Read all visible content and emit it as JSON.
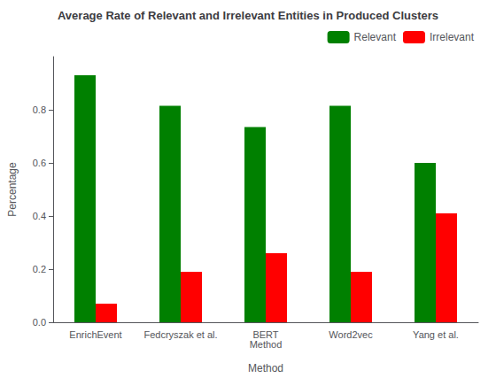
{
  "chart_data": {
    "type": "bar",
    "title": "Average Rate of Relevant and Irrelevant Entities in Produced Clusters",
    "xlabel": "Method",
    "ylabel": "Percentage",
    "categories": [
      "EnrichEvent",
      "Fedcryszak et al.",
      "BERT\nMethod",
      "Word2vec",
      "Yang et al."
    ],
    "series": [
      {
        "name": "Relevant",
        "color": "#008000",
        "values": [
          0.93,
          0.815,
          0.735,
          0.815,
          0.6
        ]
      },
      {
        "name": "Irrelevant",
        "color": "#ff0000",
        "values": [
          0.07,
          0.19,
          0.26,
          0.19,
          0.41
        ]
      }
    ],
    "ylim": [
      0.0,
      1.0
    ],
    "yticks": [
      {
        "value": 0.0,
        "label": "0.0"
      },
      0.2,
      0.4,
      0.6,
      0.8
    ],
    "grid": false,
    "legend": "upper right"
  }
}
